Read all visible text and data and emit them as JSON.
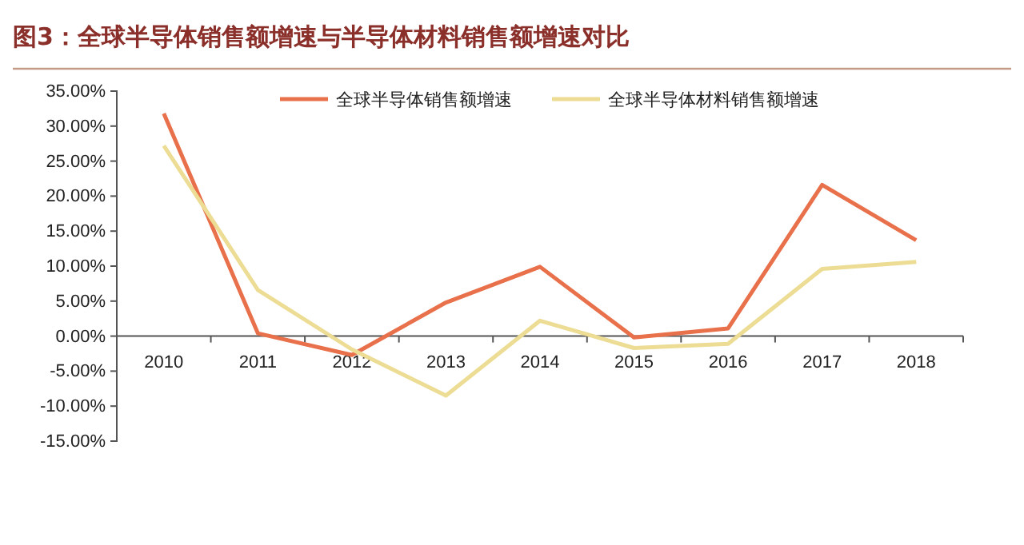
{
  "chart_data": {
    "type": "line",
    "title": "图3：全球半导体销售额增速与半导体材料销售额增速对比",
    "categories": [
      "2010",
      "2011",
      "2012",
      "2013",
      "2014",
      "2015",
      "2016",
      "2017",
      "2018"
    ],
    "series": [
      {
        "name": "全球半导体销售额增速",
        "color": "#e8704a",
        "values": [
          31.8,
          0.4,
          -2.7,
          4.8,
          9.9,
          -0.2,
          1.1,
          21.6,
          13.7
        ]
      },
      {
        "name": "全球半导体材料销售额增速",
        "color": "#ecdc94",
        "values": [
          27.2,
          6.6,
          -1.9,
          -8.5,
          2.2,
          -1.7,
          -1.1,
          9.6,
          10.6
        ]
      }
    ],
    "ylim": [
      -15,
      35
    ],
    "yticks": [
      {
        "value": -15,
        "label": "-15.00%"
      },
      {
        "value": -10,
        "label": "-10.00%"
      },
      {
        "value": -5,
        "label": "-5.00%"
      },
      {
        "value": 0,
        "label": "0.00%"
      },
      {
        "value": 5,
        "label": "5.00%"
      },
      {
        "value": 10,
        "label": "10.00%"
      },
      {
        "value": 15,
        "label": "15.00%"
      },
      {
        "value": 20,
        "label": "20.00%"
      },
      {
        "value": 25,
        "label": "25.00%"
      },
      {
        "value": 30,
        "label": "30.00%"
      },
      {
        "value": 35,
        "label": "35.00%"
      }
    ],
    "grid": false,
    "legend": "top",
    "marker": "none",
    "line_style": "solid"
  }
}
